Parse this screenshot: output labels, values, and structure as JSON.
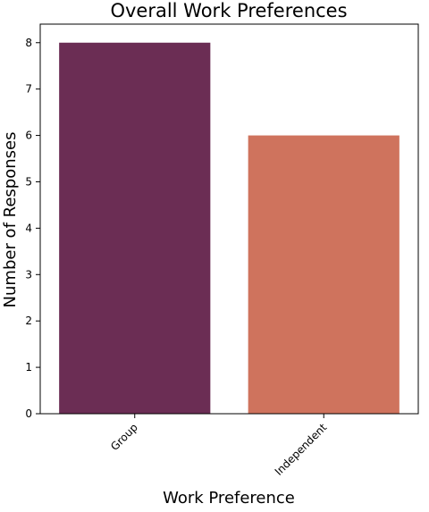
{
  "chart_data": {
    "type": "bar",
    "title": "Overall Work Preferences",
    "xlabel": "Work Preference",
    "ylabel": "Number of Responses",
    "categories": [
      "Group",
      "Independent"
    ],
    "values": [
      8,
      6
    ],
    "colors": [
      "#6b2d54",
      "#cf735d"
    ],
    "ylim": [
      0,
      8.4
    ],
    "yticks": [
      0,
      1,
      2,
      3,
      4,
      5,
      6,
      7,
      8
    ],
    "grid": false,
    "xtick_rotation": 45
  }
}
